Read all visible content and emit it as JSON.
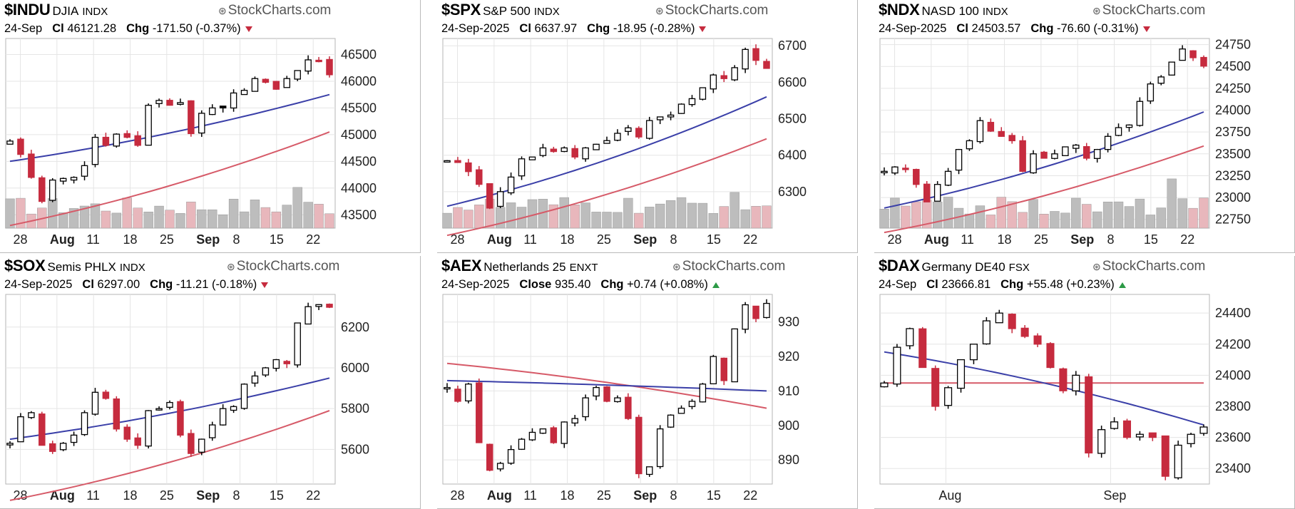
{
  "branding": "StockCharts.com",
  "colors": {
    "up_candle_fill": "#ffffff",
    "up_filled_candle": "#000000",
    "down_candle": "#c62b3e",
    "ma_short": "#3a3fa8",
    "ma_long": "#d65a68",
    "volume_up": "#bdbdbd",
    "volume_down": "#e8b7bc",
    "grid": "#e5e5e5",
    "change_down": "#c62b3e",
    "change_up": "#2c9a46"
  },
  "charts": [
    {
      "id": "indu",
      "symbol": "$INDU",
      "name": "DJIA",
      "exchange": "INDX",
      "date": "24-Sep",
      "close_label": "Cl",
      "close": "46121.28",
      "chg_label": "Chg",
      "chg": "-171.50 (-0.37%)",
      "direction": "down"
    },
    {
      "id": "spx",
      "symbol": "$SPX",
      "name": "S&P 500",
      "exchange": "INDX",
      "date": "24-Sep-2025",
      "close_label": "Cl",
      "close": "6637.97",
      "chg_label": "Chg",
      "chg": "-18.95 (-0.28%)",
      "direction": "down"
    },
    {
      "id": "ndx",
      "symbol": "$NDX",
      "name": "NASD 100",
      "exchange": "INDX",
      "date": "24-Sep-2025",
      "close_label": "Cl",
      "close": "24503.57",
      "chg_label": "Chg",
      "chg": "-76.60 (-0.31%)",
      "direction": "down"
    },
    {
      "id": "sox",
      "symbol": "$SOX",
      "name": "Semis PHLX",
      "exchange": "INDX",
      "date": "24-Sep-2025",
      "close_label": "Cl",
      "close": "6297.00",
      "chg_label": "Chg",
      "chg": "-11.21 (-0.18%)",
      "direction": "down"
    },
    {
      "id": "aex",
      "symbol": "$AEX",
      "name": "Netherlands 25",
      "exchange": "ENXT",
      "date": "24-Sep-2025",
      "close_label": "Close",
      "close": "935.40",
      "chg_label": "Chg",
      "chg": "+0.74 (+0.08%)",
      "direction": "up"
    },
    {
      "id": "dax",
      "symbol": "$DAX",
      "name": "Germany DE40",
      "exchange": "FSX",
      "date": "24-Sep",
      "close_label": "Cl",
      "close": "23666.81",
      "chg_label": "Chg",
      "chg": "+55.48 (+0.23%)",
      "direction": "up"
    }
  ],
  "chart_data": [
    {
      "type": "candlestick",
      "symbol": "$INDU",
      "x_tick_labels": [
        "28",
        "Aug",
        "11",
        "18",
        "25",
        "Sep",
        "8",
        "15",
        "22"
      ],
      "bold_x_ticks": [
        "Aug",
        "Sep"
      ],
      "y_ticks": [
        43500,
        44000,
        44500,
        45000,
        45500,
        46000,
        46500
      ],
      "ylim": [
        43250,
        46800
      ],
      "closes": [
        44880,
        44630,
        44200,
        43750,
        44150,
        44180,
        44200,
        44420,
        44950,
        44800,
        45010,
        44950,
        44800,
        45550,
        45640,
        45550,
        45600,
        45020,
        45400,
        45500,
        45500,
        45780,
        45830,
        46050,
        45980,
        45850,
        46050,
        46200,
        46400,
        46380,
        46121
      ],
      "ma_short": {
        "start": 44500,
        "end": 45750
      },
      "ma_long": {
        "start": 43300,
        "end": 45050
      },
      "volume": "overlay"
    },
    {
      "type": "candlestick",
      "symbol": "$SPX",
      "x_tick_labels": [
        "28",
        "Aug",
        "11",
        "18",
        "25",
        "Sep",
        "8",
        "15",
        "22"
      ],
      "bold_x_ticks": [
        "Aug",
        "Sep"
      ],
      "y_ticks": [
        6300,
        6400,
        6500,
        6600,
        6700
      ],
      "ylim": [
        6200,
        6720
      ],
      "closes": [
        6385,
        6380,
        6355,
        6320,
        6255,
        6300,
        6340,
        6390,
        6395,
        6420,
        6410,
        6420,
        6395,
        6420,
        6430,
        6440,
        6460,
        6475,
        6450,
        6495,
        6505,
        6510,
        6540,
        6555,
        6585,
        6620,
        6610,
        6640,
        6690,
        6660,
        6638
      ],
      "ma_short": {
        "start": 6260,
        "end": 6560
      },
      "ma_long": {
        "start": 6180,
        "end": 6445
      },
      "volume": "overlay"
    },
    {
      "type": "candlestick",
      "symbol": "$NDX",
      "x_tick_labels": [
        "28",
        "Aug",
        "11",
        "18",
        "25",
        "Sep",
        "8",
        "15",
        "22"
      ],
      "bold_x_ticks": [
        "Aug",
        "Sep"
      ],
      "y_ticks": [
        22750,
        23000,
        23250,
        23500,
        23750,
        24000,
        24250,
        24500,
        24750
      ],
      "ylim": [
        22650,
        24820
      ],
      "closes": [
        23300,
        23350,
        23320,
        23150,
        22950,
        23150,
        23300,
        23550,
        23650,
        23880,
        23760,
        23700,
        23650,
        23300,
        23500,
        23450,
        23500,
        23580,
        23600,
        23450,
        23550,
        23700,
        23800,
        23830,
        24100,
        24300,
        24380,
        24550,
        24700,
        24600,
        24504
      ],
      "ma_short": {
        "start": 22880,
        "end": 23980
      },
      "ma_long": {
        "start": 22600,
        "end": 23590
      },
      "volume": "overlay"
    },
    {
      "type": "candlestick",
      "symbol": "$SOX",
      "x_tick_labels": [
        "28",
        "Aug",
        "11",
        "18",
        "25",
        "Sep",
        "8",
        "15",
        "22"
      ],
      "bold_x_ticks": [
        "Aug",
        "Sep"
      ],
      "y_ticks": [
        5600,
        5800,
        6000,
        6200
      ],
      "ylim": [
        5430,
        6360
      ],
      "closes": [
        5630,
        5760,
        5780,
        5620,
        5590,
        5630,
        5670,
        5780,
        5880,
        5850,
        5700,
        5650,
        5620,
        5790,
        5800,
        5830,
        5670,
        5580,
        5650,
        5720,
        5800,
        5810,
        5920,
        5960,
        6000,
        6040,
        6020,
        6220,
        6300,
        6310,
        6297
      ],
      "ma_short": {
        "start": 5650,
        "end": 5950
      },
      "ma_long": {
        "start": 5350,
        "end": 5790
      },
      "volume": "none"
    },
    {
      "type": "candlestick",
      "symbol": "$AEX",
      "x_tick_labels": [
        "28",
        "Aug",
        "11",
        "18",
        "25",
        "Sep",
        "8",
        "15",
        "22"
      ],
      "bold_x_ticks": [
        "Aug",
        "Sep"
      ],
      "y_ticks": [
        890,
        900,
        910,
        920,
        930
      ],
      "ylim": [
        883,
        938
      ],
      "closes": [
        911,
        907,
        912,
        895,
        887,
        889,
        893,
        896,
        898,
        899,
        895,
        901,
        902,
        908,
        911,
        907,
        908,
        902,
        886,
        888,
        899,
        903,
        905,
        907,
        912,
        920,
        913,
        928,
        935,
        931,
        935.4
      ],
      "ma_short": {
        "start": 913,
        "end": 910
      },
      "ma_long": {
        "start": 918,
        "end": 905
      },
      "volume": "none"
    },
    {
      "type": "candlestick",
      "symbol": "$DAX",
      "x_tick_labels": [
        "Aug",
        "Sep"
      ],
      "bold_x_ticks": [],
      "y_ticks": [
        23400,
        23600,
        23800,
        24000,
        24200,
        24400
      ],
      "ylim": [
        23300,
        24520
      ],
      "closes": [
        23950,
        24180,
        24300,
        24050,
        23800,
        23920,
        24100,
        24200,
        24350,
        24400,
        24300,
        24250,
        24200,
        24050,
        23900,
        24000,
        23500,
        23650,
        23700,
        23600,
        23620,
        23600,
        23350,
        23550,
        23620,
        23667
      ],
      "ma_short": {
        "start": 24150,
        "end": 23680
      },
      "ma_long": {
        "start": 23950,
        "end": 23950
      },
      "volume": "none"
    }
  ]
}
